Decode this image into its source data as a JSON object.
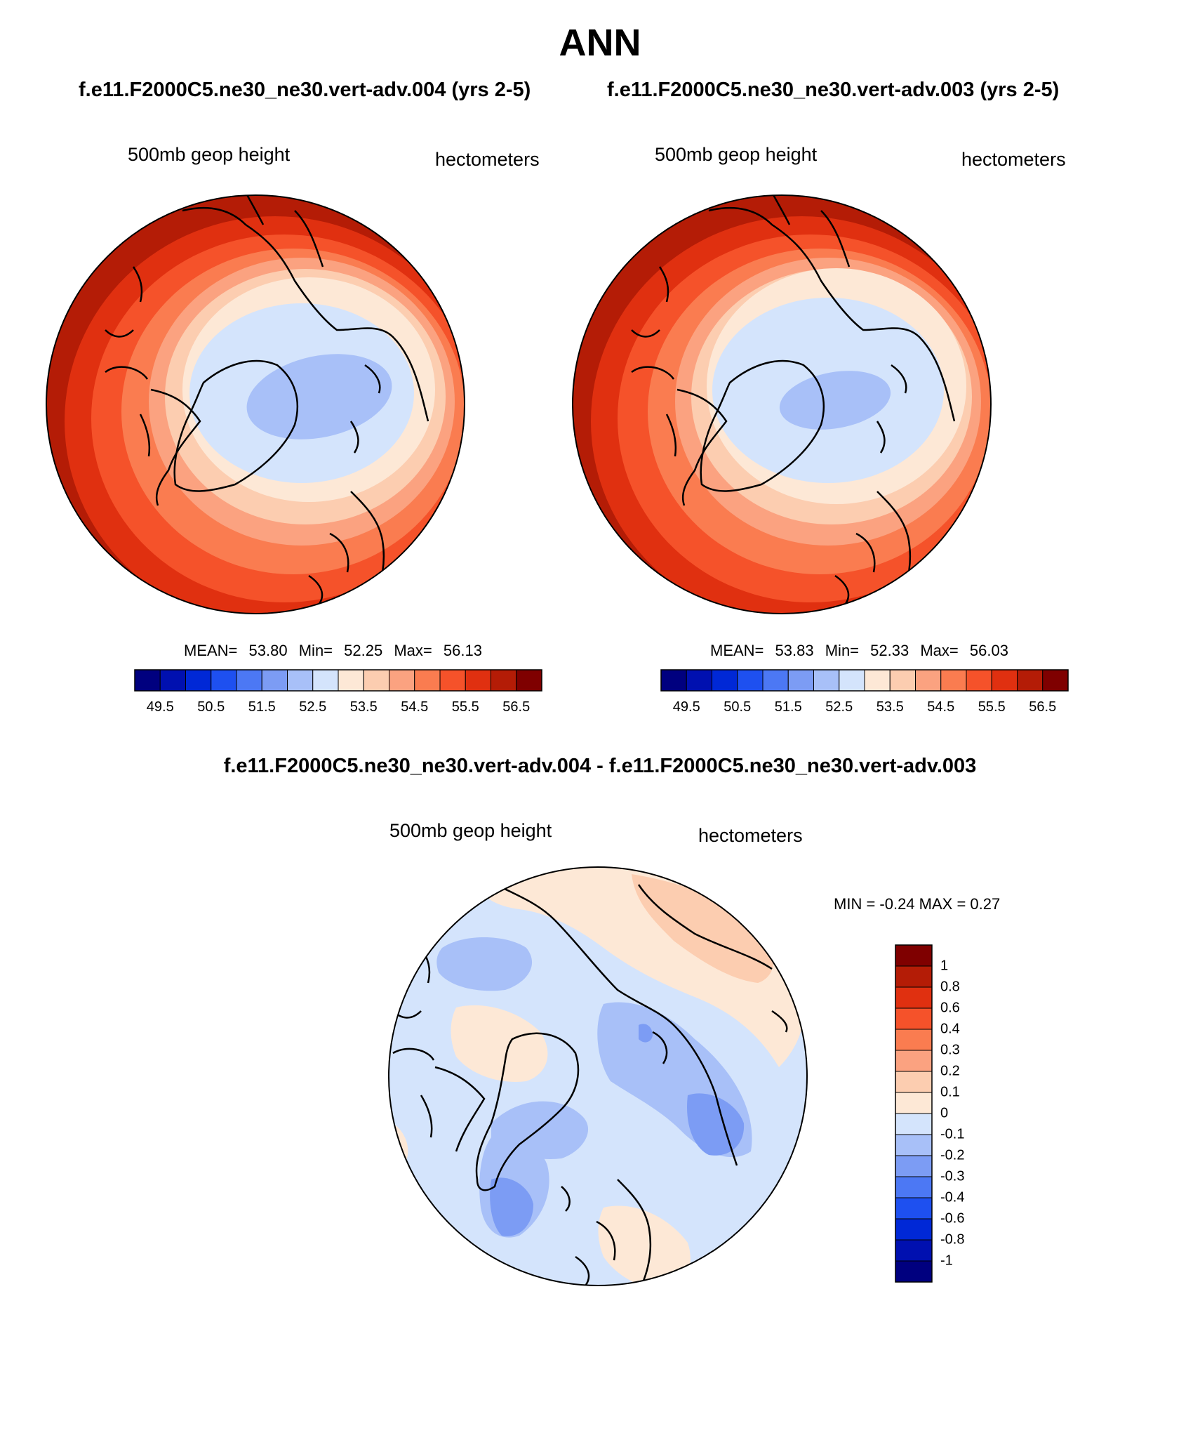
{
  "title": "ANN",
  "panels": [
    {
      "case": "f.e11.F2000C5.ne30_ne30.vert-adv.004 (yrs 2-5)",
      "left_label": "500mb geop height",
      "right_label": "hectometers",
      "stats": {
        "mean_label": "MEAN=",
        "mean": "53.80",
        "min_label": "Min=",
        "min": "52.25",
        "max_label": "Max=",
        "max": "56.13"
      }
    },
    {
      "case": "f.e11.F2000C5.ne30_ne30.vert-adv.003 (yrs 2-5)",
      "left_label": "500mb geop height",
      "right_label": "hectometers",
      "stats": {
        "mean_label": "MEAN=",
        "mean": "53.83",
        "min_label": "Min=",
        "min": "52.33",
        "max_label": "Max=",
        "max": "56.03"
      }
    }
  ],
  "colorbar_full": {
    "colors": [
      "#00007f",
      "#0010b0",
      "#0028d6",
      "#1e50f0",
      "#4c78f4",
      "#7c9cf4",
      "#a8c0f8",
      "#d4e4fc",
      "#fde8d6",
      "#fccdb0",
      "#fba280",
      "#fa7c50",
      "#f5522a",
      "#e03010",
      "#b41c06",
      "#7f0000"
    ],
    "tick_labels": [
      "49.5",
      "50.5",
      "51.5",
      "52.5",
      "53.5",
      "54.5",
      "55.5",
      "56.5"
    ]
  },
  "diff": {
    "title": "f.e11.F2000C5.ne30_ne30.vert-adv.004 - f.e11.F2000C5.ne30_ne30.vert-adv.003",
    "left_label": "500mb geop height",
    "right_label": "hectometers",
    "minmax": "MIN =  -0.24 MAX =   0.27",
    "colorbar": {
      "colors": [
        "#7f0000",
        "#b41c06",
        "#e03010",
        "#f5522a",
        "#fa7c50",
        "#fba280",
        "#fccdb0",
        "#fde8d6",
        "#d4e4fc",
        "#a8c0f8",
        "#7c9cf4",
        "#4c78f4",
        "#1e50f0",
        "#0028d6",
        "#0010b0",
        "#00007f"
      ],
      "tick_labels": [
        "1",
        "0.8",
        "0.6",
        "0.4",
        "0.3",
        "0.2",
        "0.1",
        "0",
        "-0.1",
        "-0.2",
        "-0.3",
        "-0.4",
        "-0.6",
        "-0.8",
        "-1"
      ]
    }
  },
  "map_colors": {
    "z1": "#b41c06",
    "z2": "#e03010",
    "z3": "#f5522a",
    "z4": "#fa7c50",
    "z5": "#fba280",
    "z6": "#fccdb0",
    "z7": "#fde8d6",
    "z8": "#d4e4fc",
    "z9": "#a8c0f8",
    "diff_bg": "#d4e4fc",
    "diff_pos1": "#fde8d6",
    "diff_pos2": "#fccdb0",
    "diff_neg": "#a8c0f8",
    "diff_neg2": "#7c9cf4"
  }
}
